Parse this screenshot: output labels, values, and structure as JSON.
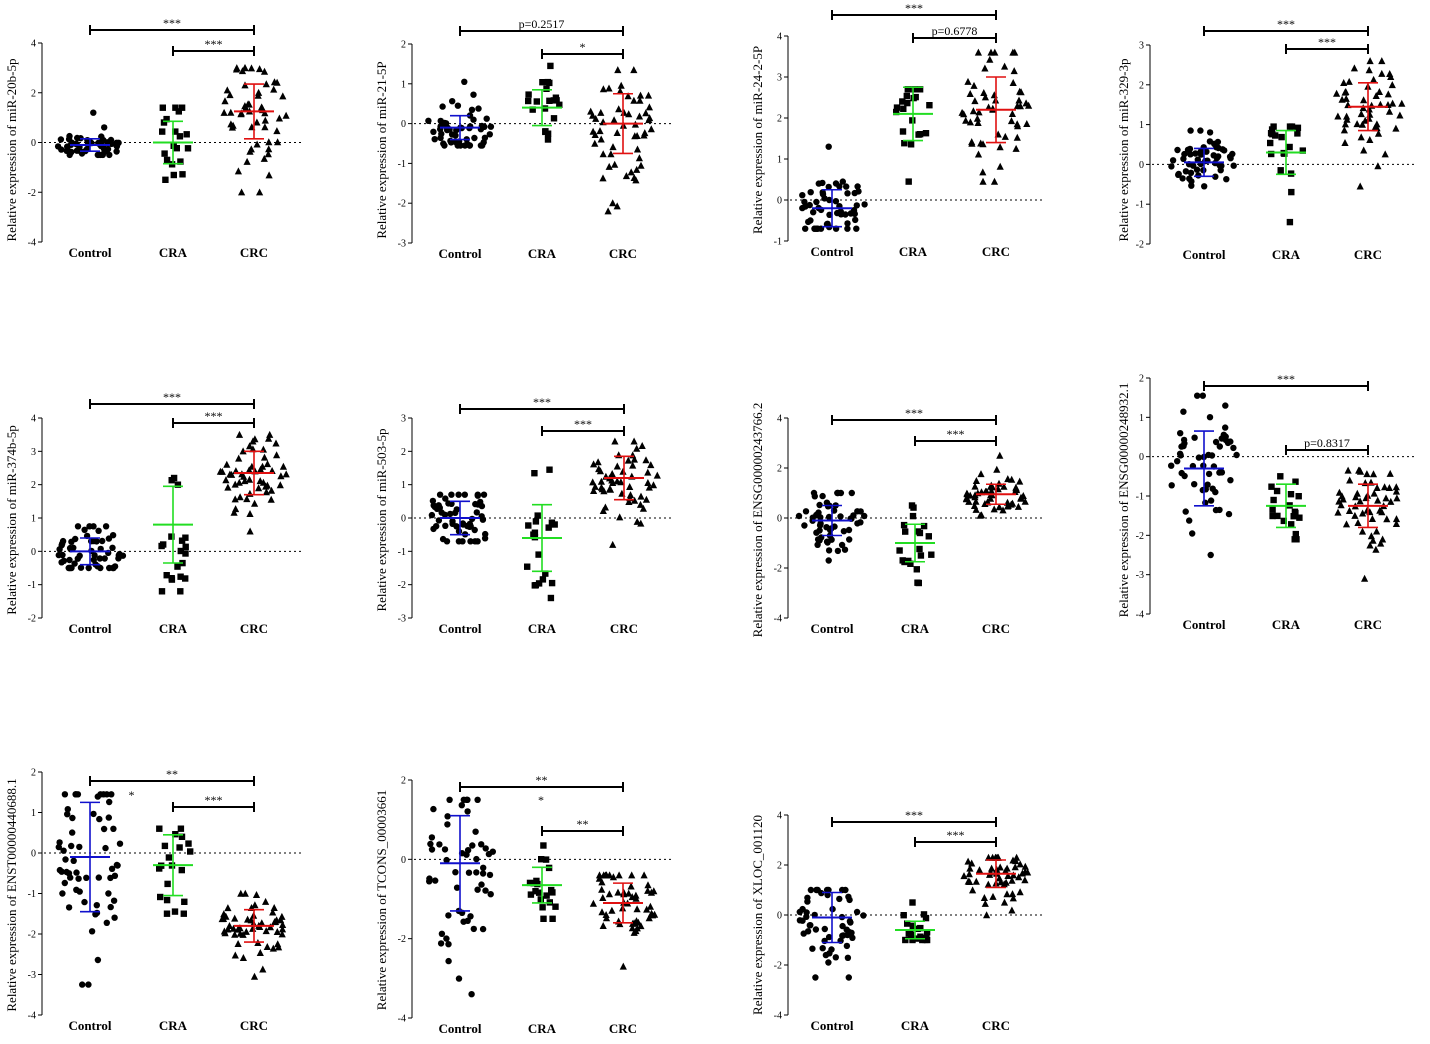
{
  "figure": {
    "group_colors": {
      "Control": "#1010cc",
      "CRA": "#22dd22",
      "CRC": "#e01010"
    }
  },
  "chart_data": [
    {
      "type": "scatter",
      "ylabel": "Relative expression of miR-20b-5p",
      "ylim": [
        -4,
        4
      ],
      "yticks": [
        -4,
        -2,
        0,
        2,
        4
      ],
      "categories": [
        "Control",
        "CRA",
        "CRC"
      ],
      "n": [
        55,
        20,
        55
      ],
      "groups": [
        {
          "name": "Control",
          "marker": "circle",
          "mean": -0.1,
          "sd": 0.25,
          "min": -0.5,
          "max": 1.2
        },
        {
          "name": "CRA",
          "marker": "square",
          "mean": 0.0,
          "sd": 0.85,
          "min": -1.5,
          "max": 1.4
        },
        {
          "name": "CRC",
          "marker": "triangle",
          "mean": 1.25,
          "sd": 1.1,
          "min": -2.0,
          "max": 3.0
        }
      ],
      "comparisons": [
        {
          "from": "Control",
          "to": "CRC",
          "label": "***"
        },
        {
          "from": "CRA",
          "to": "CRC",
          "label": "***"
        }
      ]
    },
    {
      "type": "scatter",
      "ylabel": "Relative expression of miR-21-5P",
      "ylim": [
        -3,
        2
      ],
      "yticks": [
        -3,
        -2,
        -1,
        0,
        1,
        2
      ],
      "categories": [
        "Control",
        "CRA",
        "CRC"
      ],
      "n": [
        55,
        20,
        55
      ],
      "groups": [
        {
          "name": "Control",
          "marker": "circle",
          "mean": -0.1,
          "sd": 0.3,
          "min": -0.55,
          "max": 1.05
        },
        {
          "name": "CRA",
          "marker": "square",
          "mean": 0.4,
          "sd": 0.45,
          "min": -0.4,
          "max": 1.45
        },
        {
          "name": "CRC",
          "marker": "triangle",
          "mean": 0.0,
          "sd": 0.75,
          "min": -2.2,
          "max": 1.35
        }
      ],
      "comparisons": [
        {
          "from": "Control",
          "to": "CRC",
          "label": "p=0.2517"
        },
        {
          "from": "CRA",
          "to": "CRC",
          "label": "*"
        }
      ]
    },
    {
      "type": "scatter",
      "ylabel": "Relative expression of miR-24-2-5P",
      "ylim": [
        -1,
        4
      ],
      "yticks": [
        -1,
        0,
        1,
        2,
        3,
        4
      ],
      "categories": [
        "Control",
        "CRA",
        "CRC"
      ],
      "n": [
        55,
        20,
        55
      ],
      "groups": [
        {
          "name": "Control",
          "marker": "circle",
          "mean": -0.2,
          "sd": 0.45,
          "min": -0.7,
          "max": 1.3
        },
        {
          "name": "CRA",
          "marker": "square",
          "mean": 2.1,
          "sd": 0.65,
          "min": 0.45,
          "max": 2.7
        },
        {
          "name": "CRC",
          "marker": "triangle",
          "mean": 2.2,
          "sd": 0.8,
          "min": 0.45,
          "max": 3.6
        }
      ],
      "comparisons": [
        {
          "from": "Control",
          "to": "CRC",
          "label": "***"
        },
        {
          "from": "CRA",
          "to": "CRC",
          "label": "p=0.6778"
        }
      ]
    },
    {
      "type": "scatter",
      "ylabel": "Relative expression of miR-329-3p",
      "ylim": [
        -2,
        3
      ],
      "yticks": [
        -2,
        -1,
        0,
        1,
        2,
        3
      ],
      "categories": [
        "Control",
        "CRA",
        "CRC"
      ],
      "n": [
        55,
        20,
        55
      ],
      "groups": [
        {
          "name": "Control",
          "marker": "circle",
          "mean": 0.05,
          "sd": 0.35,
          "min": -0.55,
          "max": 0.85
        },
        {
          "name": "CRA",
          "marker": "square",
          "mean": 0.3,
          "sd": 0.55,
          "min": -1.45,
          "max": 0.95
        },
        {
          "name": "CRC",
          "marker": "triangle",
          "mean": 1.45,
          "sd": 0.6,
          "min": -0.55,
          "max": 2.6
        }
      ],
      "comparisons": [
        {
          "from": "Control",
          "to": "CRC",
          "label": "***"
        },
        {
          "from": "CRA",
          "to": "CRC",
          "label": "***"
        }
      ]
    },
    {
      "type": "scatter",
      "ylabel": "Relative expression of miR-374b-5p",
      "ylim": [
        -2,
        4
      ],
      "yticks": [
        -2,
        -1,
        0,
        1,
        2,
        3,
        4
      ],
      "categories": [
        "Control",
        "CRA",
        "CRC"
      ],
      "n": [
        55,
        20,
        55
      ],
      "groups": [
        {
          "name": "Control",
          "marker": "circle",
          "mean": 0.0,
          "sd": 0.4,
          "min": -0.5,
          "max": 0.75
        },
        {
          "name": "CRA",
          "marker": "square",
          "mean": 0.8,
          "sd": 1.15,
          "min": -1.2,
          "max": 2.2
        },
        {
          "name": "CRC",
          "marker": "triangle",
          "mean": 2.35,
          "sd": 0.65,
          "min": 0.6,
          "max": 3.5
        }
      ],
      "comparisons": [
        {
          "from": "Control",
          "to": "CRC",
          "label": "***"
        },
        {
          "from": "CRA",
          "to": "CRC",
          "label": "***"
        }
      ]
    },
    {
      "type": "scatter",
      "ylabel": "Relative expression of miR-503-5p",
      "ylim": [
        -3,
        3
      ],
      "yticks": [
        -3,
        -2,
        -1,
        0,
        1,
        2,
        3
      ],
      "categories": [
        "Control",
        "CRA",
        "CRC"
      ],
      "n": [
        55,
        20,
        55
      ],
      "groups": [
        {
          "name": "Control",
          "marker": "circle",
          "mean": 0.0,
          "sd": 0.5,
          "min": -0.7,
          "max": 0.7
        },
        {
          "name": "CRA",
          "marker": "square",
          "mean": -0.6,
          "sd": 1.0,
          "min": -2.4,
          "max": 1.45
        },
        {
          "name": "CRC",
          "marker": "triangle",
          "mean": 1.2,
          "sd": 0.65,
          "min": -0.8,
          "max": 2.3
        }
      ],
      "comparisons": [
        {
          "from": "Control",
          "to": "CRC",
          "label": "***"
        },
        {
          "from": "CRA",
          "to": "CRC",
          "label": "***"
        }
      ]
    },
    {
      "type": "scatter",
      "ylabel": "Relative expression of ENSG00000243766.2",
      "ylim": [
        -4,
        4
      ],
      "yticks": [
        -4,
        -2,
        0,
        2,
        4
      ],
      "categories": [
        "Control",
        "CRA",
        "CRC"
      ],
      "n": [
        55,
        20,
        55
      ],
      "groups": [
        {
          "name": "Control",
          "marker": "circle",
          "mean": -0.1,
          "sd": 0.6,
          "min": -1.7,
          "max": 1.0
        },
        {
          "name": "CRA",
          "marker": "square",
          "mean": -1.0,
          "sd": 0.75,
          "min": -2.6,
          "max": 0.5
        },
        {
          "name": "CRC",
          "marker": "triangle",
          "mean": 0.95,
          "sd": 0.4,
          "min": 0.1,
          "max": 2.5
        }
      ],
      "comparisons": [
        {
          "from": "Control",
          "to": "CRC",
          "label": "***"
        },
        {
          "from": "CRA",
          "to": "CRC",
          "label": "***"
        }
      ]
    },
    {
      "type": "scatter",
      "ylabel": "Relative expression of ENSG00000248932.1",
      "ylim": [
        -4,
        2
      ],
      "yticks": [
        -4,
        -3,
        -2,
        -1,
        0,
        1,
        2
      ],
      "categories": [
        "Control",
        "CRA",
        "CRC"
      ],
      "n": [
        55,
        20,
        55
      ],
      "groups": [
        {
          "name": "Control",
          "marker": "circle",
          "mean": -0.3,
          "sd": 0.95,
          "min": -2.5,
          "max": 1.55
        },
        {
          "name": "CRA",
          "marker": "square",
          "mean": -1.25,
          "sd": 0.55,
          "min": -2.1,
          "max": -0.5
        },
        {
          "name": "CRC",
          "marker": "triangle",
          "mean": -1.25,
          "sd": 0.55,
          "min": -3.1,
          "max": -0.35
        }
      ],
      "comparisons": [
        {
          "from": "Control",
          "to": "CRC",
          "label": "***"
        },
        {
          "from": "CRA",
          "to": "CRC",
          "label": "p=0.8317"
        }
      ]
    },
    {
      "type": "scatter",
      "ylabel": "Relative expression of ENST00000440688.1",
      "ylim": [
        -4,
        2
      ],
      "yticks": [
        -4,
        -3,
        -2,
        -1,
        0,
        1,
        2
      ],
      "categories": [
        "Control",
        "CRA",
        "CRC"
      ],
      "n": [
        60,
        20,
        55
      ],
      "groups": [
        {
          "name": "Control",
          "marker": "circle",
          "mean": -0.1,
          "sd": 1.35,
          "min": -3.25,
          "max": 1.45
        },
        {
          "name": "CRA",
          "marker": "square",
          "mean": -0.3,
          "sd": 0.75,
          "min": -1.5,
          "max": 0.6
        },
        {
          "name": "CRC",
          "marker": "triangle",
          "mean": -1.8,
          "sd": 0.4,
          "min": -3.05,
          "max": -1.0
        }
      ],
      "comparisons": [
        {
          "from": "Control",
          "to": "CRC",
          "label": "**"
        },
        {
          "from": "Control",
          "to": "CRA",
          "label": "*"
        },
        {
          "from": "CRA",
          "to": "CRC",
          "label": "***"
        }
      ]
    },
    {
      "type": "scatter",
      "ylabel": "Relative expression of TCONS_00003661",
      "ylim": [
        -4,
        2
      ],
      "yticks": [
        -4,
        -2,
        0,
        2
      ],
      "categories": [
        "Control",
        "CRA",
        "CRC"
      ],
      "n": [
        55,
        20,
        55
      ],
      "groups": [
        {
          "name": "Control",
          "marker": "circle",
          "mean": -0.1,
          "sd": 1.2,
          "min": -3.4,
          "max": 1.5
        },
        {
          "name": "CRA",
          "marker": "square",
          "mean": -0.65,
          "sd": 0.45,
          "min": -1.5,
          "max": 0.35
        },
        {
          "name": "CRC",
          "marker": "triangle",
          "mean": -1.1,
          "sd": 0.5,
          "min": -2.7,
          "max": -0.4
        }
      ],
      "comparisons": [
        {
          "from": "Control",
          "to": "CRC",
          "label": "**"
        },
        {
          "from": "Control",
          "to": "CRA",
          "label": "*"
        },
        {
          "from": "CRA",
          "to": "CRC",
          "label": "**"
        }
      ]
    },
    {
      "type": "scatter",
      "ylabel": "Relative expression of XLOC_001120",
      "ylim": [
        -4,
        4
      ],
      "yticks": [
        -4,
        -2,
        0,
        2,
        4
      ],
      "categories": [
        "Control",
        "CRA",
        "CRC"
      ],
      "n": [
        55,
        20,
        55
      ],
      "groups": [
        {
          "name": "Control",
          "marker": "circle",
          "mean": -0.1,
          "sd": 1.0,
          "min": -2.5,
          "max": 1.0
        },
        {
          "name": "CRA",
          "marker": "square",
          "mean": -0.6,
          "sd": 0.35,
          "min": -1.0,
          "max": 0.5
        },
        {
          "name": "CRC",
          "marker": "triangle",
          "mean": 1.65,
          "sd": 0.55,
          "min": 0.0,
          "max": 2.3
        }
      ],
      "comparisons": [
        {
          "from": "Control",
          "to": "CRC",
          "label": "***"
        },
        {
          "from": "CRA",
          "to": "CRC",
          "label": "***"
        }
      ]
    }
  ]
}
